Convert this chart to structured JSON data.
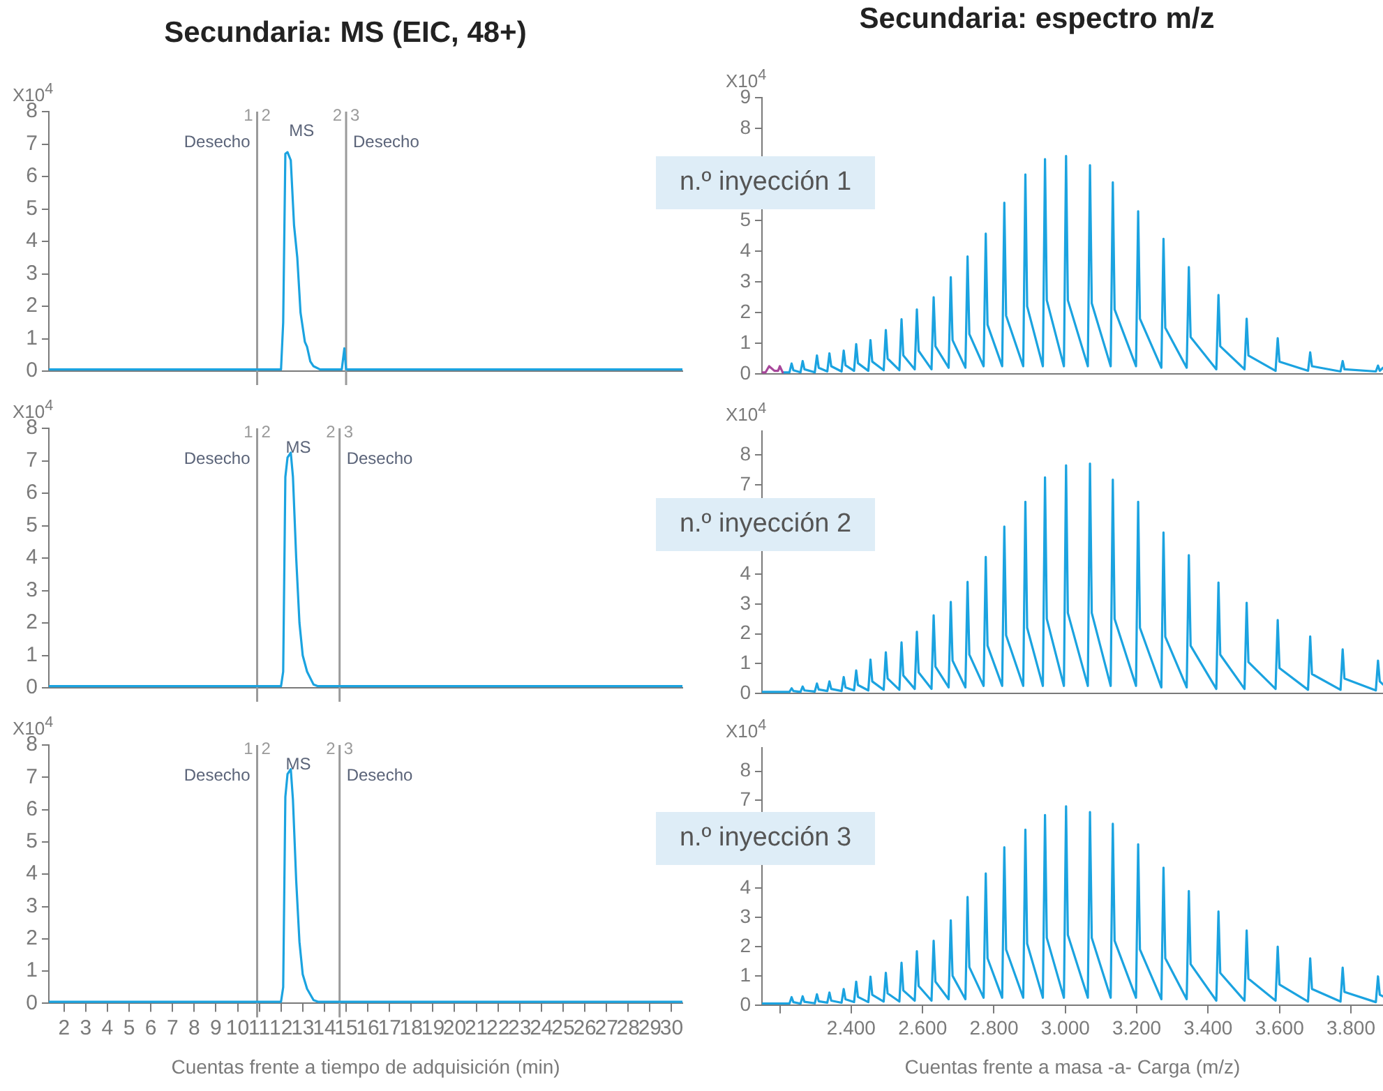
{
  "chart_data": [
    {
      "type": "line",
      "title": "Secundaria: MS (EIC, 48+)",
      "ylabel": "X10$^{4}$",
      "x": [
        1.3,
        10.9,
        12.0,
        12.1,
        12.2,
        12.3,
        12.45,
        12.6,
        12.75,
        12.9,
        13.1,
        13.2,
        13.35,
        13.5,
        13.8,
        14.8,
        14.92,
        15.0,
        30.5
      ],
      "series": [
        {
          "color": "#1ba3e0",
          "values": [
            0.05,
            0.05,
            0.05,
            1.5,
            6.7,
            6.75,
            6.5,
            4.5,
            3.5,
            1.8,
            0.9,
            0.75,
            0.3,
            0.15,
            0.05,
            0.05,
            0.7,
            0.05,
            0.05
          ]
        }
      ],
      "xlim": [
        1.3,
        30.5
      ],
      "ylim": [
        0,
        8
      ],
      "yticks": [
        0,
        1,
        2,
        3,
        4,
        5,
        6,
        7,
        8
      ],
      "tick_labels": "y",
      "marker": "none",
      "ref_lines": [
        {
          "axis": "x",
          "value": 10.9
        },
        {
          "axis": "x",
          "value": 15.0
        }
      ],
      "annotations": [
        "Desecho",
        "1",
        "2",
        "MS",
        "2",
        "3",
        "Desecho"
      ]
    },
    {
      "type": "line",
      "title": "Secundaria: espectro m/z",
      "ylabel": "X10$^{4}$",
      "series": [
        {
          "color": "#a8479b",
          "x": [
            2150,
            2160,
            2170,
            2185,
            2195,
            2200,
            2208
          ],
          "values": [
            0.05,
            0.05,
            0.25,
            0.1,
            0.1,
            0.25,
            0.05
          ]
        },
        {
          "color": "#1ba3e0",
          "x": [
            2208,
            2227,
            2233,
            2238,
            2258,
            2264,
            2269,
            2298,
            2304,
            2309,
            2333,
            2339,
            2344,
            2373,
            2379,
            2384,
            2408,
            2414,
            2419,
            2448,
            2454,
            2459,
            2491,
            2497,
            2502,
            2535,
            2541,
            2546,
            2578,
            2584,
            2589,
            2625,
            2631,
            2636,
            2673,
            2679,
            2684,
            2720,
            2726,
            2731,
            2771,
            2777,
            2782,
            2823,
            2829,
            2834,
            2882,
            2888,
            2893,
            2937,
            2943,
            2948,
            2996,
            3002,
            3007,
            3063,
            3069,
            3074,
            3127,
            3133,
            3138,
            3198,
            3204,
            3209,
            3269,
            3275,
            3280,
            3340,
            3346,
            3351,
            3423,
            3429,
            3434,
            3502,
            3508,
            3513,
            3589,
            3595,
            3600,
            3680,
            3686,
            3691,
            3771,
            3777,
            3782,
            3870,
            3876,
            3881,
            3890
          ],
          "values": [
            0.05,
            0.05,
            0.34,
            0.12,
            0.05,
            0.42,
            0.15,
            0.05,
            0.6,
            0.2,
            0.08,
            0.67,
            0.25,
            0.08,
            0.76,
            0.28,
            0.1,
            0.97,
            0.35,
            0.1,
            1.1,
            0.4,
            0.12,
            1.43,
            0.5,
            0.12,
            1.78,
            0.6,
            0.15,
            2.1,
            0.75,
            0.15,
            2.5,
            0.9,
            0.2,
            3.15,
            1.1,
            0.2,
            3.83,
            1.3,
            0.25,
            4.57,
            1.6,
            0.25,
            5.58,
            1.9,
            0.25,
            6.5,
            2.2,
            0.25,
            7.0,
            2.4,
            0.25,
            7.1,
            2.4,
            0.25,
            6.8,
            2.3,
            0.25,
            6.24,
            2.1,
            0.25,
            5.3,
            1.8,
            0.2,
            4.4,
            1.5,
            0.2,
            3.48,
            1.2,
            0.15,
            2.57,
            0.9,
            0.15,
            1.8,
            0.6,
            0.1,
            1.16,
            0.4,
            0.1,
            0.7,
            0.25,
            0.08,
            0.42,
            0.15,
            0.08,
            0.27,
            0.1,
            0.2
          ]
        }
      ],
      "xlim": [
        2150,
        3890
      ],
      "ylim": [
        0,
        9
      ],
      "yticks": [
        0,
        1,
        2,
        3,
        4,
        5,
        8,
        9
      ],
      "tick_labels": "y",
      "marker": "none",
      "annotations": [
        "n.º inyección 1"
      ]
    },
    {
      "type": "line",
      "ylabel": "X10$^{4}$",
      "x": [
        1.3,
        12.0,
        12.1,
        12.2,
        12.3,
        12.45,
        12.55,
        12.7,
        12.85,
        13.0,
        13.2,
        13.5,
        13.7,
        14.7,
        30.5
      ],
      "series": [
        {
          "color": "#1ba3e0",
          "values": [
            0.05,
            0.05,
            0.5,
            6.5,
            7.1,
            7.25,
            6.5,
            4,
            2,
            1,
            0.5,
            0.1,
            0.05,
            0.05,
            0.05
          ]
        }
      ],
      "xlim": [
        1.3,
        30.5
      ],
      "ylim": [
        0,
        8
      ],
      "yticks": [
        0,
        1,
        2,
        3,
        4,
        5,
        6,
        7,
        8
      ],
      "tick_labels": "y",
      "marker": "none",
      "ref_lines": [
        {
          "axis": "x",
          "value": 10.9
        },
        {
          "axis": "x",
          "value": 14.7
        }
      ],
      "annotations": [
        "Desecho",
        "1",
        "2",
        "MS",
        "2",
        "3",
        "Desecho"
      ]
    },
    {
      "type": "line",
      "ylabel": "X10$^{4}$",
      "x": [
        2150,
        2227,
        2233,
        2238,
        2258,
        2264,
        2269,
        2298,
        2304,
        2309,
        2333,
        2339,
        2344,
        2373,
        2379,
        2384,
        2408,
        2414,
        2419,
        2448,
        2454,
        2459,
        2491,
        2497,
        2502,
        2535,
        2541,
        2546,
        2578,
        2584,
        2589,
        2625,
        2631,
        2636,
        2673,
        2679,
        2684,
        2720,
        2726,
        2731,
        2771,
        2777,
        2782,
        2823,
        2829,
        2834,
        2882,
        2888,
        2893,
        2937,
        2943,
        2948,
        2996,
        3002,
        3007,
        3063,
        3069,
        3074,
        3127,
        3133,
        3138,
        3198,
        3204,
        3209,
        3269,
        3275,
        3280,
        3340,
        3346,
        3351,
        3423,
        3429,
        3434,
        3502,
        3508,
        3513,
        3589,
        3595,
        3600,
        3680,
        3686,
        3691,
        3771,
        3777,
        3782,
        3870,
        3876,
        3881,
        3890
      ],
      "series": [
        {
          "color": "#1ba3e0",
          "values": [
            0.05,
            0.05,
            0.17,
            0.08,
            0.05,
            0.23,
            0.1,
            0.06,
            0.33,
            0.13,
            0.08,
            0.4,
            0.15,
            0.08,
            0.55,
            0.2,
            0.1,
            0.77,
            0.28,
            0.1,
            1.13,
            0.4,
            0.12,
            1.38,
            0.5,
            0.12,
            1.71,
            0.6,
            0.15,
            2.07,
            0.7,
            0.15,
            2.62,
            0.9,
            0.2,
            3.07,
            1.1,
            0.2,
            3.74,
            1.3,
            0.25,
            4.58,
            1.6,
            0.25,
            5.6,
            1.95,
            0.25,
            6.43,
            2.2,
            0.25,
            7.25,
            2.5,
            0.25,
            7.65,
            2.7,
            0.25,
            7.71,
            2.7,
            0.25,
            7.17,
            2.5,
            0.25,
            6.43,
            2.2,
            0.2,
            5.4,
            1.9,
            0.2,
            4.64,
            1.6,
            0.15,
            3.72,
            1.3,
            0.15,
            3.04,
            1.05,
            0.15,
            2.46,
            0.85,
            0.12,
            1.91,
            0.65,
            0.12,
            1.48,
            0.5,
            0.1,
            1.1,
            0.4,
            0.3
          ]
        }
      ],
      "xlim": [
        2150,
        3890
      ],
      "ylim": [
        0,
        8.8
      ],
      "yticks": [
        0,
        1,
        2,
        3,
        4,
        7,
        8
      ],
      "tick_labels": "y",
      "marker": "none",
      "annotations": [
        "n.º inyección 2"
      ]
    },
    {
      "type": "line",
      "xlabel": "Cuentas frente a tiempo de adquisición (min)",
      "ylabel": "X10$^{4}$",
      "x": [
        1.3,
        12.0,
        12.1,
        12.2,
        12.3,
        12.45,
        12.55,
        12.7,
        12.85,
        13.0,
        13.2,
        13.5,
        13.7,
        14.7,
        30.5
      ],
      "series": [
        {
          "color": "#1ba3e0",
          "values": [
            0.05,
            0.05,
            0.5,
            6.4,
            7.1,
            7.25,
            6.3,
            3.8,
            1.9,
            0.9,
            0.45,
            0.1,
            0.05,
            0.05,
            0.05
          ]
        }
      ],
      "xlim": [
        1.3,
        30.5
      ],
      "xticks": [
        2,
        3,
        4,
        5,
        6,
        7,
        8,
        9,
        10,
        11,
        12,
        13,
        14,
        15,
        16,
        17,
        18,
        19,
        20,
        21,
        22,
        23,
        24,
        25,
        26,
        27,
        28,
        29,
        30
      ],
      "ylim": [
        0,
        8
      ],
      "yticks": [
        0,
        1,
        2,
        3,
        4,
        5,
        6,
        7,
        8
      ],
      "marker": "none",
      "ref_lines": [
        {
          "axis": "x",
          "value": 10.9
        },
        {
          "axis": "x",
          "value": 14.7
        }
      ],
      "annotations": [
        "Desecho",
        "1",
        "2",
        "MS",
        "2",
        "3",
        "Desecho"
      ]
    },
    {
      "type": "line",
      "xlabel": "Cuentas frente a masa -a- Carga (m/z)",
      "ylabel": "X10$^{4}$",
      "x": [
        2150,
        2227,
        2233,
        2238,
        2258,
        2264,
        2269,
        2298,
        2304,
        2309,
        2333,
        2339,
        2344,
        2373,
        2379,
        2384,
        2408,
        2414,
        2419,
        2448,
        2454,
        2459,
        2491,
        2497,
        2502,
        2535,
        2541,
        2546,
        2578,
        2584,
        2589,
        2625,
        2631,
        2636,
        2673,
        2679,
        2684,
        2720,
        2726,
        2731,
        2771,
        2777,
        2782,
        2823,
        2829,
        2834,
        2882,
        2888,
        2893,
        2937,
        2943,
        2948,
        2996,
        3002,
        3007,
        3063,
        3069,
        3074,
        3127,
        3133,
        3138,
        3198,
        3204,
        3209,
        3269,
        3275,
        3280,
        3340,
        3346,
        3351,
        3423,
        3429,
        3434,
        3502,
        3508,
        3513,
        3589,
        3595,
        3600,
        3680,
        3686,
        3691,
        3771,
        3777,
        3782,
        3870,
        3876,
        3881,
        3890
      ],
      "series": [
        {
          "color": "#1ba3e0",
          "values": [
            0.05,
            0.05,
            0.27,
            0.1,
            0.05,
            0.3,
            0.11,
            0.06,
            0.37,
            0.13,
            0.08,
            0.43,
            0.15,
            0.08,
            0.55,
            0.2,
            0.1,
            0.8,
            0.28,
            0.1,
            0.97,
            0.35,
            0.12,
            1.1,
            0.4,
            0.12,
            1.45,
            0.5,
            0.15,
            1.84,
            0.65,
            0.15,
            2.2,
            0.8,
            0.2,
            2.9,
            1.0,
            0.2,
            3.7,
            1.3,
            0.25,
            4.5,
            1.6,
            0.25,
            5.4,
            1.9,
            0.25,
            6.0,
            2.1,
            0.25,
            6.5,
            2.3,
            0.25,
            6.8,
            2.4,
            0.25,
            6.6,
            2.3,
            0.25,
            6.2,
            2.2,
            0.25,
            5.5,
            1.9,
            0.2,
            4.7,
            1.6,
            0.2,
            3.9,
            1.4,
            0.15,
            3.2,
            1.1,
            0.15,
            2.55,
            0.9,
            0.15,
            2.0,
            0.7,
            0.12,
            1.6,
            0.55,
            0.12,
            1.28,
            0.45,
            0.1,
            0.98,
            0.35,
            0.3
          ]
        }
      ],
      "xlim": [
        2150,
        3890
      ],
      "xticks": [
        {
          "value": 2200,
          "label": null
        },
        {
          "value": 2400,
          "label": "2.400"
        },
        {
          "value": 2600,
          "label": "2.600"
        },
        {
          "value": 2800,
          "label": "2.800"
        },
        {
          "value": 3000,
          "label": "3.000"
        },
        {
          "value": 3200,
          "label": "3.200"
        },
        {
          "value": 3400,
          "label": "3.400"
        },
        {
          "value": 3600,
          "label": "3.600"
        },
        {
          "value": 3800,
          "label": "3.800"
        }
      ],
      "ylim": [
        0,
        8.8
      ],
      "yticks": [
        0,
        1,
        2,
        3,
        4,
        7,
        8
      ],
      "marker": "none",
      "annotations": [
        "n.º inyección 3"
      ]
    }
  ]
}
